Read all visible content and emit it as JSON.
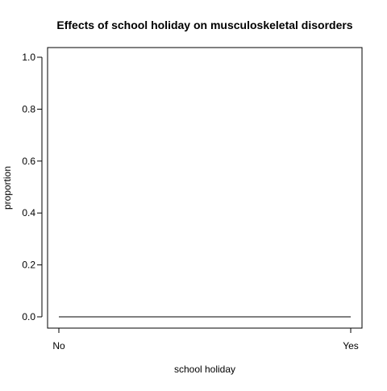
{
  "chart_data": {
    "type": "line",
    "title": "Effects of school holiday on musculoskeletal disorders",
    "xlabel": "school holiday",
    "ylabel": "proportion",
    "categories": [
      "No",
      "Yes"
    ],
    "series": [
      {
        "values": [
          0.0,
          0.0
        ]
      }
    ],
    "ylim": [
      0,
      1
    ],
    "yticks": [
      0.0,
      0.2,
      0.4,
      0.6,
      0.8,
      1.0
    ],
    "ytick_labels": [
      "0.0",
      "0.2",
      "0.4",
      "0.6",
      "0.8",
      "1.0"
    ],
    "grid": false,
    "line_color": "#000000"
  }
}
